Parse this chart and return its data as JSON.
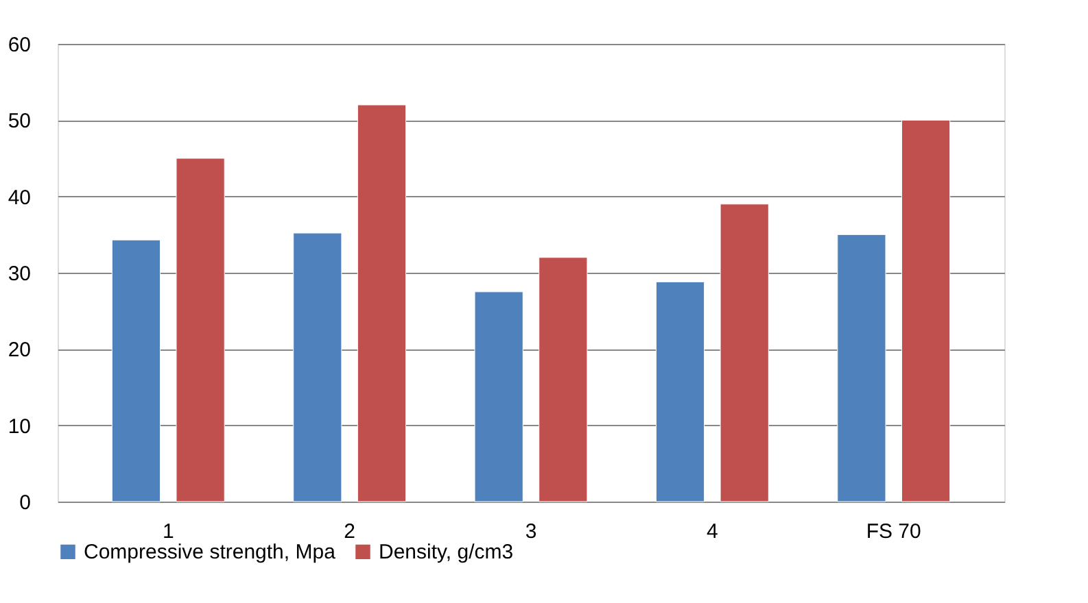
{
  "chart_data": {
    "type": "bar",
    "categories": [
      "1",
      "2",
      "3",
      "4",
      "FS 70"
    ],
    "series": [
      {
        "name": "Compressive strength, Mpa",
        "color": "#4f81bd",
        "values": [
          34.3,
          35.2,
          27.5,
          28.8,
          35
        ]
      },
      {
        "name": "Density, g/cm3",
        "color": "#c0504d",
        "values": [
          45,
          52,
          32,
          39,
          50
        ]
      }
    ],
    "ylim": [
      0,
      60
    ],
    "yticks": [
      0,
      10,
      20,
      30,
      40,
      50,
      60
    ],
    "grid": "y",
    "legend": "bottom"
  }
}
